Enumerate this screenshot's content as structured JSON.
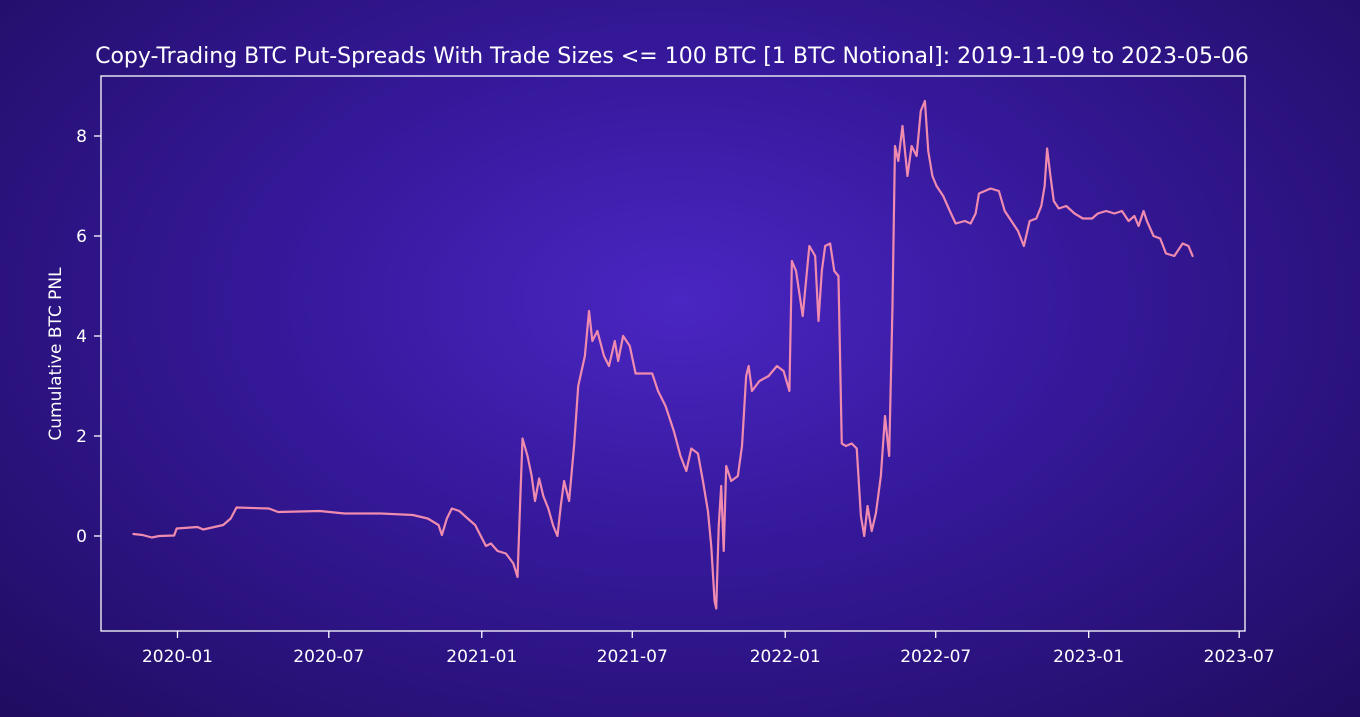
{
  "chart_data": {
    "type": "line",
    "title": "Copy-Trading BTC Put-Spreads With Trade Sizes <= 100 BTC [1 BTC Notional]: 2019-11-09 to 2023-05-06",
    "xlabel": "",
    "ylabel": "Cumulative BTC PNL",
    "x_axis": "date",
    "xlim": [
      "2019-10-01",
      "2023-07-08"
    ],
    "ylim": [
      -1.9,
      9.2
    ],
    "x_ticks": [
      "2020-01",
      "2020-07",
      "2021-01",
      "2021-07",
      "2022-01",
      "2022-07",
      "2023-01",
      "2023-07"
    ],
    "y_ticks": [
      0,
      2,
      4,
      6,
      8
    ],
    "grid": false,
    "line_color": "#f08bb0",
    "series": [
      {
        "name": "",
        "points": [
          [
            "2019-11-09",
            0.04
          ],
          [
            "2019-11-20",
            0.02
          ],
          [
            "2019-12-01",
            -0.03
          ],
          [
            "2019-12-10",
            0.0
          ],
          [
            "2019-12-28",
            0.01
          ],
          [
            "2019-12-31",
            0.15
          ],
          [
            "2020-01-25",
            0.18
          ],
          [
            "2020-02-01",
            0.13
          ],
          [
            "2020-02-25",
            0.22
          ],
          [
            "2020-03-05",
            0.35
          ],
          [
            "2020-03-12",
            0.57
          ],
          [
            "2020-04-20",
            0.55
          ],
          [
            "2020-05-01",
            0.48
          ],
          [
            "2020-06-20",
            0.5
          ],
          [
            "2020-07-20",
            0.45
          ],
          [
            "2020-09-01",
            0.45
          ],
          [
            "2020-10-10",
            0.42
          ],
          [
            "2020-10-28",
            0.35
          ],
          [
            "2020-11-10",
            0.22
          ],
          [
            "2020-11-14",
            0.02
          ],
          [
            "2020-11-20",
            0.35
          ],
          [
            "2020-11-26",
            0.55
          ],
          [
            "2020-12-05",
            0.5
          ],
          [
            "2020-12-15",
            0.35
          ],
          [
            "2020-12-24",
            0.22
          ],
          [
            "2021-01-06",
            -0.2
          ],
          [
            "2021-01-12",
            -0.15
          ],
          [
            "2021-01-20",
            -0.3
          ],
          [
            "2021-01-30",
            -0.35
          ],
          [
            "2021-02-08",
            -0.55
          ],
          [
            "2021-02-13",
            -0.82
          ],
          [
            "2021-02-16",
            0.6
          ],
          [
            "2021-02-19",
            1.95
          ],
          [
            "2021-02-25",
            1.6
          ],
          [
            "2021-03-02",
            1.2
          ],
          [
            "2021-03-06",
            0.7
          ],
          [
            "2021-03-11",
            1.15
          ],
          [
            "2021-03-16",
            0.8
          ],
          [
            "2021-03-22",
            0.55
          ],
          [
            "2021-03-28",
            0.2
          ],
          [
            "2021-04-02",
            0.0
          ],
          [
            "2021-04-06",
            0.6
          ],
          [
            "2021-04-10",
            1.1
          ],
          [
            "2021-04-16",
            0.7
          ],
          [
            "2021-04-22",
            1.8
          ],
          [
            "2021-04-27",
            3.0
          ],
          [
            "2021-05-05",
            3.6
          ],
          [
            "2021-05-10",
            4.5
          ],
          [
            "2021-05-14",
            3.9
          ],
          [
            "2021-05-20",
            4.1
          ],
          [
            "2021-05-28",
            3.6
          ],
          [
            "2021-06-03",
            3.4
          ],
          [
            "2021-06-10",
            3.9
          ],
          [
            "2021-06-14",
            3.5
          ],
          [
            "2021-06-20",
            4.0
          ],
          [
            "2021-06-28",
            3.8
          ],
          [
            "2021-07-05",
            3.25
          ],
          [
            "2021-07-25",
            3.25
          ],
          [
            "2021-08-01",
            2.9
          ],
          [
            "2021-08-10",
            2.6
          ],
          [
            "2021-08-20",
            2.1
          ],
          [
            "2021-08-28",
            1.6
          ],
          [
            "2021-09-04",
            1.3
          ],
          [
            "2021-09-10",
            1.75
          ],
          [
            "2021-09-18",
            1.65
          ],
          [
            "2021-09-24",
            1.1
          ],
          [
            "2021-09-30",
            0.5
          ],
          [
            "2021-10-04",
            -0.2
          ],
          [
            "2021-10-08",
            -1.3
          ],
          [
            "2021-10-10",
            -1.45
          ],
          [
            "2021-10-13",
            0.2
          ],
          [
            "2021-10-16",
            1.0
          ],
          [
            "2021-10-19",
            -0.3
          ],
          [
            "2021-10-22",
            1.4
          ],
          [
            "2021-10-28",
            1.1
          ],
          [
            "2021-11-05",
            1.2
          ],
          [
            "2021-11-10",
            1.8
          ],
          [
            "2021-11-15",
            3.2
          ],
          [
            "2021-11-18",
            3.4
          ],
          [
            "2021-11-22",
            2.9
          ],
          [
            "2021-12-01",
            3.1
          ],
          [
            "2021-12-12",
            3.2
          ],
          [
            "2021-12-22",
            3.4
          ],
          [
            "2021-12-30",
            3.3
          ],
          [
            "2022-01-06",
            2.9
          ],
          [
            "2022-01-09",
            5.5
          ],
          [
            "2022-01-14",
            5.3
          ],
          [
            "2022-01-22",
            4.4
          ],
          [
            "2022-01-30",
            5.8
          ],
          [
            "2022-02-06",
            5.6
          ],
          [
            "2022-02-10",
            4.3
          ],
          [
            "2022-02-14",
            5.3
          ],
          [
            "2022-02-18",
            5.8
          ],
          [
            "2022-02-24",
            5.85
          ],
          [
            "2022-03-01",
            5.3
          ],
          [
            "2022-03-06",
            5.2
          ],
          [
            "2022-03-10",
            1.85
          ],
          [
            "2022-03-15",
            1.8
          ],
          [
            "2022-03-22",
            1.85
          ],
          [
            "2022-03-28",
            1.75
          ],
          [
            "2022-04-02",
            0.4
          ],
          [
            "2022-04-06",
            0.0
          ],
          [
            "2022-04-10",
            0.6
          ],
          [
            "2022-04-15",
            0.1
          ],
          [
            "2022-04-20",
            0.45
          ],
          [
            "2022-04-26",
            1.2
          ],
          [
            "2022-05-01",
            2.4
          ],
          [
            "2022-05-06",
            1.6
          ],
          [
            "2022-05-10",
            4.6
          ],
          [
            "2022-05-13",
            7.8
          ],
          [
            "2022-05-17",
            7.5
          ],
          [
            "2022-05-22",
            8.2
          ],
          [
            "2022-05-28",
            7.2
          ],
          [
            "2022-06-02",
            7.8
          ],
          [
            "2022-06-08",
            7.6
          ],
          [
            "2022-06-13",
            8.5
          ],
          [
            "2022-06-18",
            8.7
          ],
          [
            "2022-06-22",
            7.7
          ],
          [
            "2022-06-27",
            7.2
          ],
          [
            "2022-07-02",
            7.0
          ],
          [
            "2022-07-10",
            6.8
          ],
          [
            "2022-07-18",
            6.5
          ],
          [
            "2022-07-25",
            6.25
          ],
          [
            "2022-08-05",
            6.3
          ],
          [
            "2022-08-12",
            6.25
          ],
          [
            "2022-08-18",
            6.45
          ],
          [
            "2022-08-22",
            6.85
          ],
          [
            "2022-09-05",
            6.95
          ],
          [
            "2022-09-15",
            6.9
          ],
          [
            "2022-09-22",
            6.5
          ],
          [
            "2022-09-30",
            6.3
          ],
          [
            "2022-10-08",
            6.1
          ],
          [
            "2022-10-15",
            5.8
          ],
          [
            "2022-10-22",
            6.3
          ],
          [
            "2022-10-30",
            6.35
          ],
          [
            "2022-11-05",
            6.6
          ],
          [
            "2022-11-09",
            7.0
          ],
          [
            "2022-11-12",
            7.75
          ],
          [
            "2022-11-16",
            7.2
          ],
          [
            "2022-11-20",
            6.7
          ],
          [
            "2022-11-26",
            6.55
          ],
          [
            "2022-12-05",
            6.6
          ],
          [
            "2022-12-15",
            6.45
          ],
          [
            "2022-12-25",
            6.35
          ],
          [
            "2023-01-05",
            6.35
          ],
          [
            "2023-01-12",
            6.45
          ],
          [
            "2023-01-22",
            6.5
          ],
          [
            "2023-02-01",
            6.45
          ],
          [
            "2023-02-10",
            6.5
          ],
          [
            "2023-02-18",
            6.3
          ],
          [
            "2023-02-25",
            6.4
          ],
          [
            "2023-03-02",
            6.2
          ],
          [
            "2023-03-08",
            6.5
          ],
          [
            "2023-03-12",
            6.3
          ],
          [
            "2023-03-20",
            6.0
          ],
          [
            "2023-03-28",
            5.95
          ],
          [
            "2023-04-04",
            5.65
          ],
          [
            "2023-04-14",
            5.6
          ],
          [
            "2023-04-20",
            5.75
          ],
          [
            "2023-04-24",
            5.85
          ],
          [
            "2023-05-01",
            5.8
          ],
          [
            "2023-05-06",
            5.6
          ]
        ]
      }
    ]
  }
}
